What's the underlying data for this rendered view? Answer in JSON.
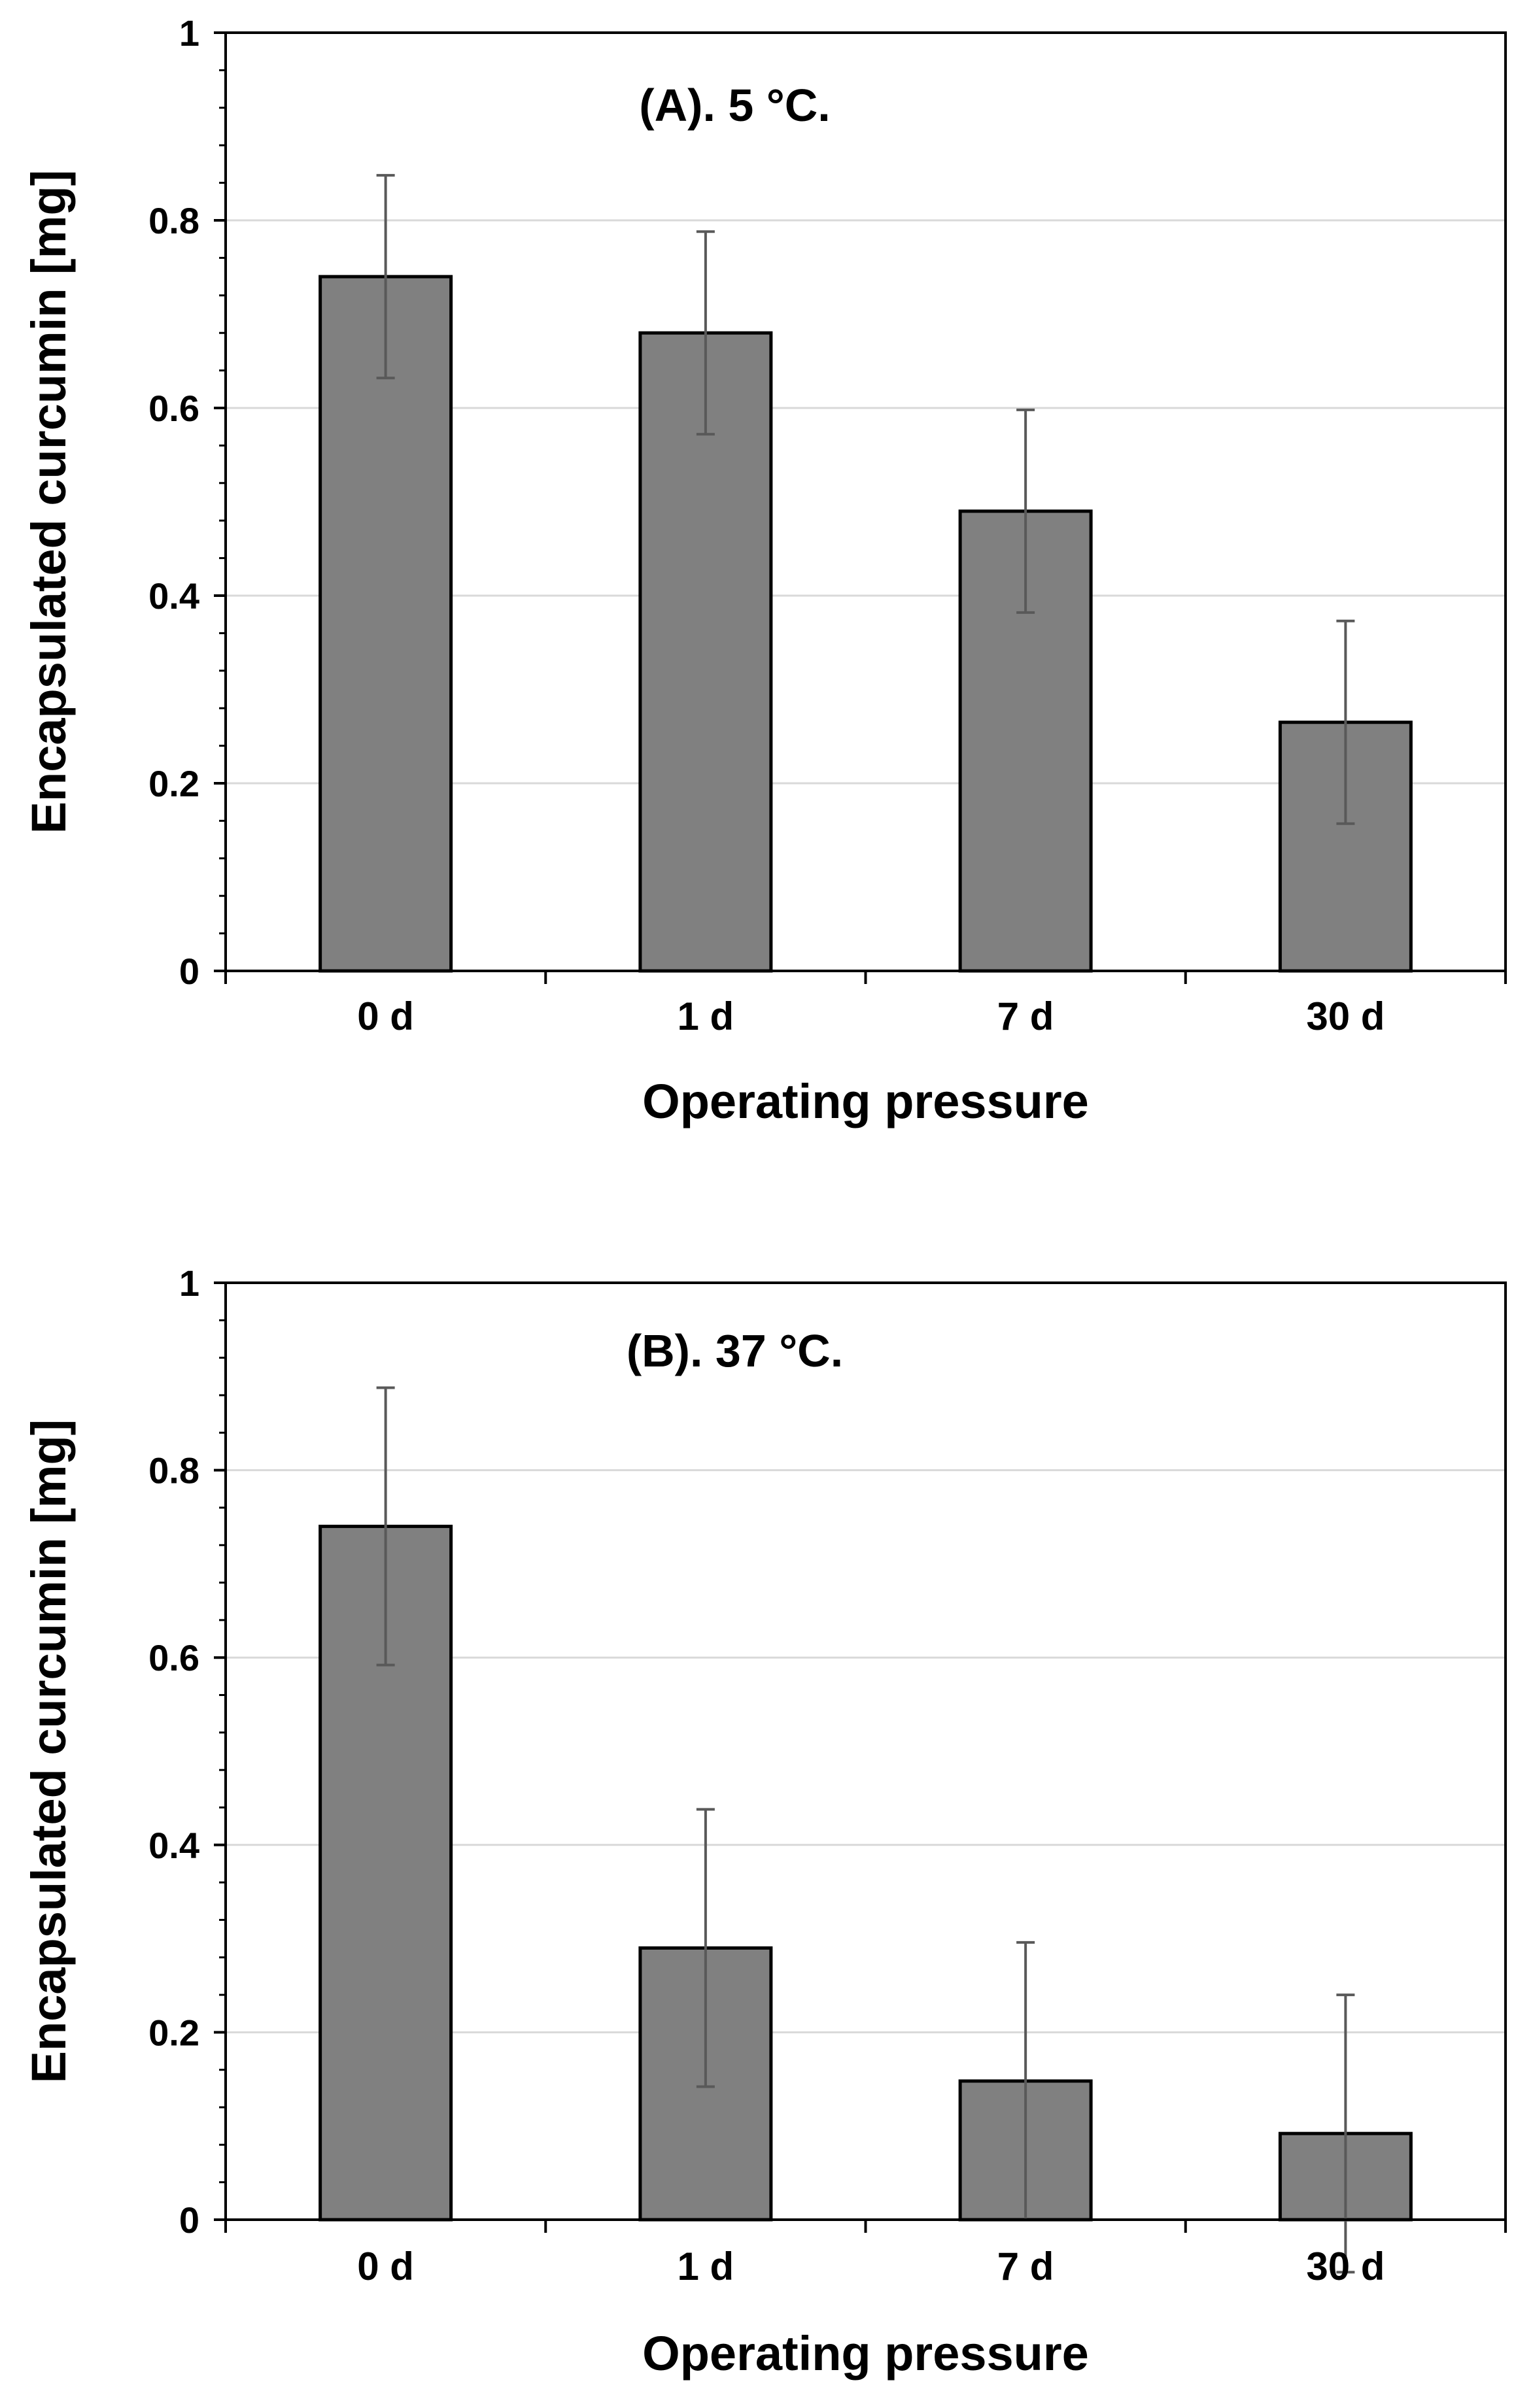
{
  "colors": {
    "bar_fill": "#808080",
    "bar_edge": "#000000",
    "grid": "#d9d9d9",
    "error_bar": "#595959",
    "axis": "#000000"
  },
  "chart_data": [
    {
      "type": "bar",
      "title": "(A). 5 °C.",
      "xlabel": "Operating pressure",
      "ylabel": "Encapsulated curcumin [mg]",
      "categories": [
        "0 d",
        "1 d",
        "7 d",
        "30 d"
      ],
      "values": [
        0.74,
        0.68,
        0.49,
        0.265
      ],
      "errors": [
        0.108,
        0.108,
        0.108,
        0.108
      ],
      "ylim": [
        0,
        1
      ],
      "yticks": [
        0,
        0.2,
        0.4,
        0.6,
        0.8,
        1
      ],
      "ytick_labels": [
        "0",
        "0.2",
        "0.4",
        "0.6",
        "0.8",
        "1"
      ],
      "grid": true
    },
    {
      "type": "bar",
      "title": "(B). 37 °C.",
      "xlabel": "Operating pressure",
      "ylabel": "Encapsulated curcumin [mg]",
      "categories": [
        "0 d",
        "1 d",
        "7 d",
        "30 d"
      ],
      "values": [
        0.74,
        0.29,
        0.148,
        0.092
      ],
      "errors": [
        0.148,
        0.148,
        0.148,
        0.148
      ],
      "ylim": [
        0,
        1
      ],
      "yticks": [
        0,
        0.2,
        0.4,
        0.6,
        0.8,
        1
      ],
      "ytick_labels": [
        "0",
        "0.2",
        "0.4",
        "0.6",
        "0.8",
        "1"
      ],
      "grid": true
    }
  ]
}
